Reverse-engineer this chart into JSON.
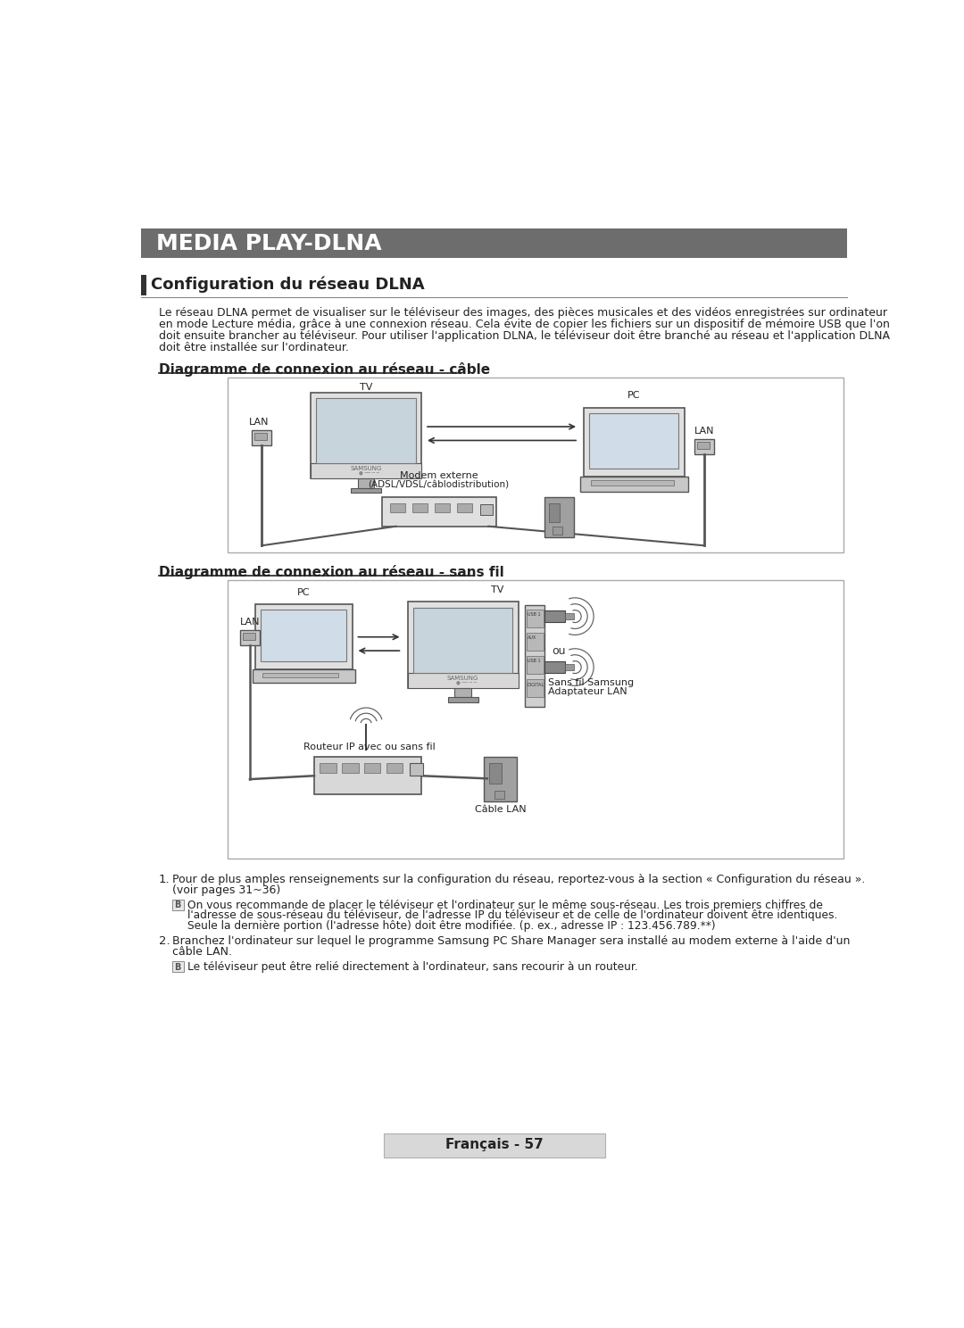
{
  "bg_color": "#ffffff",
  "header_bg": "#6d6d6d",
  "header_text": "MEDIA PLAY-DLNA",
  "header_text_color": "#ffffff",
  "section_title": "Configuration du réseau DLNA",
  "section_bar_color": "#333333",
  "text_color": "#222222",
  "body_text_line1": "Le réseau DLNA permet de visualiser sur le téléviseur des images, des pièces musicales et des vidéos enregistrées sur ordinateur",
  "body_text_line2": "en mode Lecture média, grâce à une connexion réseau. Cela évite de copier les fichiers sur un dispositif de mémoire USB que l'on",
  "body_text_line3": "doit ensuite brancher au téléviseur. Pour utiliser l'application DLNA, le téléviseur doit être branché au réseau et l'application DLNA",
  "body_text_line4": "doit être installée sur l'ordinateur.",
  "diag1_title": "Diagramme de connexion au réseau - câble",
  "diag2_title": "Diagramme de connexion au réseau - sans fil",
  "footer_text": "Français - 57",
  "note1_line1": "Pour de plus amples renseignements sur la configuration du réseau, reportez-vous à la section « Configuration du réseau ».",
  "note1_line2": "(voir pages 31~36)",
  "note2_line1": "On vous recommande de placer le téléviseur et l'ordinateur sur le même sous-réseau. Les trois premiers chiffres de",
  "note2_line2": "l'adresse de sous-réseau du téléviseur, de l'adresse IP du téléviseur et de celle de l'ordinateur doivent être identiques.",
  "note2_line3": "Seule la dernière portion (l'adresse hôte) doit être modifiée. (p. ex., adresse IP : 123.456.789.**)",
  "note3_line1": "Branchez l'ordinateur sur lequel le programme Samsung PC Share Manager sera installé au modem externe à l'aide d'un",
  "note3_line2": "câble LAN.",
  "note4_line1": "Le téléviseur peut être relié directement à l'ordinateur, sans recourir à un routeur."
}
